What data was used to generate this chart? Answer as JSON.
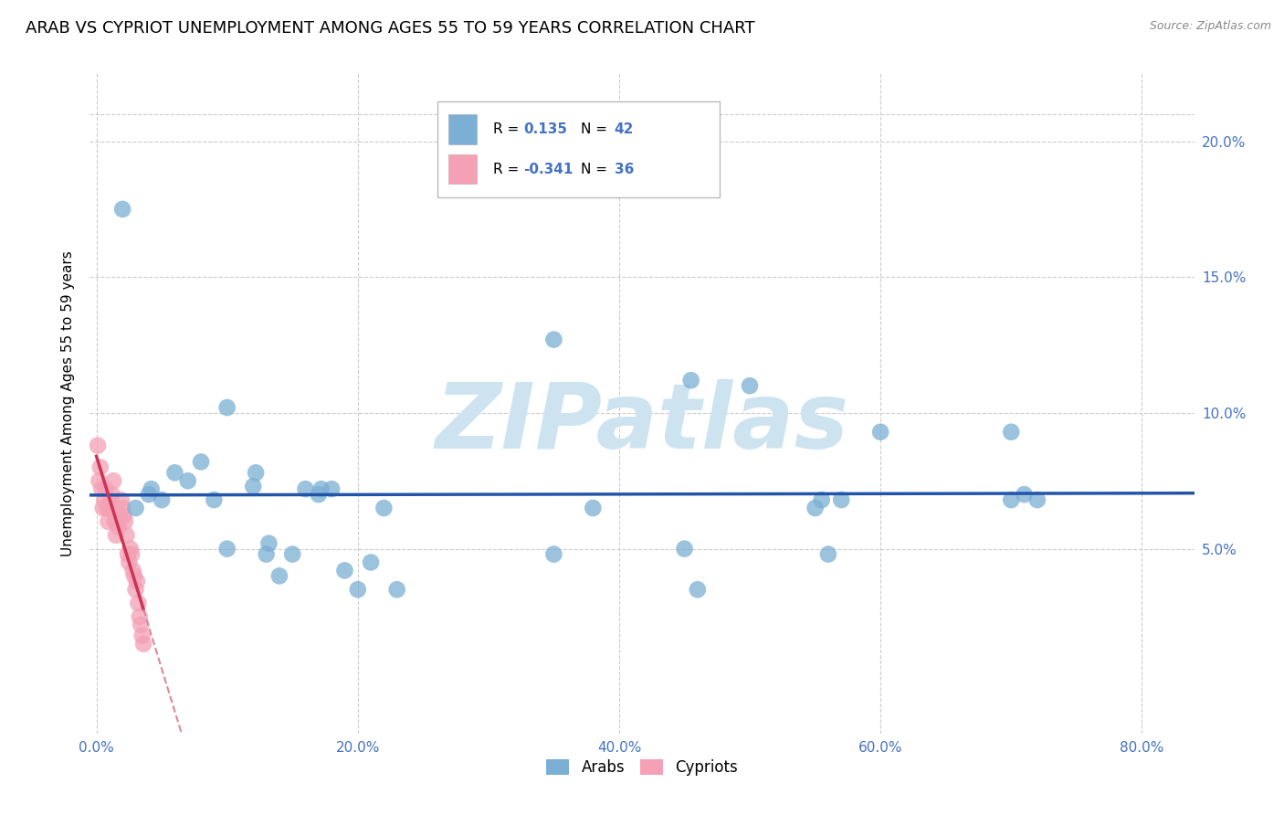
{
  "title": "ARAB VS CYPRIOT UNEMPLOYMENT AMONG AGES 55 TO 59 YEARS CORRELATION CHART",
  "source": "Source: ZipAtlas.com",
  "ylabel": "Unemployment Among Ages 55 to 59 years",
  "tick_color": "#4472C4",
  "x_tick_labels": [
    "0.0%",
    "20.0%",
    "40.0%",
    "60.0%",
    "80.0%"
  ],
  "x_tick_values": [
    0.0,
    0.2,
    0.4,
    0.6,
    0.8
  ],
  "y_tick_labels": [
    "5.0%",
    "10.0%",
    "15.0%",
    "20.0%"
  ],
  "y_tick_values": [
    0.05,
    0.1,
    0.15,
    0.2
  ],
  "xlim": [
    -0.005,
    0.84
  ],
  "ylim": [
    -0.018,
    0.225
  ],
  "arab_color": "#7bafd4",
  "cypriot_color": "#f4a0b5",
  "arab_line_color": "#2255aa",
  "cypriot_line_color": "#cc3355",
  "cypriot_dash_color": "#dd8899",
  "R_arab": 0.135,
  "N_arab": 42,
  "R_cypriot": -0.341,
  "N_cypriot": 36,
  "legend_label_arab": "Arabs",
  "legend_label_cypriot": "Cypriots",
  "arab_x": [
    0.02,
    0.1,
    0.35,
    0.455,
    0.5,
    0.555,
    0.6,
    0.7,
    0.03,
    0.04,
    0.042,
    0.05,
    0.06,
    0.07,
    0.08,
    0.09,
    0.1,
    0.12,
    0.122,
    0.13,
    0.132,
    0.14,
    0.15,
    0.16,
    0.17,
    0.172,
    0.18,
    0.19,
    0.2,
    0.21,
    0.22,
    0.23,
    0.35,
    0.38,
    0.45,
    0.46,
    0.55,
    0.56,
    0.57,
    0.7,
    0.71,
    0.72
  ],
  "arab_y": [
    0.175,
    0.102,
    0.127,
    0.112,
    0.11,
    0.068,
    0.093,
    0.093,
    0.065,
    0.07,
    0.072,
    0.068,
    0.078,
    0.075,
    0.082,
    0.068,
    0.05,
    0.073,
    0.078,
    0.048,
    0.052,
    0.04,
    0.048,
    0.072,
    0.07,
    0.072,
    0.072,
    0.042,
    0.035,
    0.045,
    0.065,
    0.035,
    0.048,
    0.065,
    0.05,
    0.035,
    0.065,
    0.048,
    0.068,
    0.068,
    0.07,
    0.068
  ],
  "cypriot_x": [
    0.001,
    0.002,
    0.003,
    0.004,
    0.005,
    0.006,
    0.007,
    0.008,
    0.009,
    0.01,
    0.011,
    0.012,
    0.013,
    0.014,
    0.015,
    0.016,
    0.017,
    0.018,
    0.019,
    0.02,
    0.021,
    0.022,
    0.023,
    0.024,
    0.025,
    0.026,
    0.027,
    0.028,
    0.029,
    0.03,
    0.031,
    0.032,
    0.033,
    0.034,
    0.035,
    0.036
  ],
  "cypriot_y": [
    0.088,
    0.075,
    0.08,
    0.072,
    0.065,
    0.068,
    0.072,
    0.065,
    0.06,
    0.065,
    0.068,
    0.07,
    0.075,
    0.06,
    0.055,
    0.06,
    0.058,
    0.062,
    0.068,
    0.065,
    0.062,
    0.06,
    0.055,
    0.048,
    0.045,
    0.05,
    0.048,
    0.042,
    0.04,
    0.035,
    0.038,
    0.03,
    0.025,
    0.022,
    0.018,
    0.015
  ],
  "background_color": "#ffffff",
  "grid_color": "#cccccc",
  "title_fontsize": 13,
  "axis_label_fontsize": 11,
  "tick_fontsize": 11,
  "watermark_text": "ZIPatlas",
  "watermark_color": "#cde4f0"
}
